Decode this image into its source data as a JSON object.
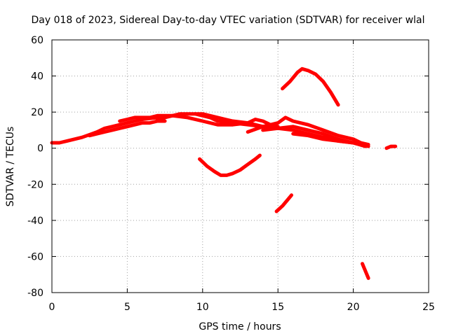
{
  "chart_data": {
    "type": "line",
    "title": "Day 018 of 2023, Sidereal Day-to-day VTEC variation (SDTVAR) for receiver wlal",
    "xlabel": "GPS time / hours",
    "ylabel": "SDTVAR / TECUs",
    "xlim": [
      0,
      25
    ],
    "ylim": [
      -80,
      60
    ],
    "xticks": [
      0,
      5,
      10,
      15,
      20,
      25
    ],
    "yticks": [
      -80,
      -60,
      -40,
      -20,
      0,
      20,
      40,
      60
    ],
    "grid": true,
    "color": "#ff0000",
    "series": [
      {
        "name": "arc-main-1",
        "x": [
          0,
          0.5,
          1,
          2,
          3,
          3.5,
          4,
          4.5,
          5,
          5.5,
          6,
          7,
          8,
          8.5,
          9,
          9.5,
          10,
          10.5,
          11,
          12,
          13,
          14,
          15,
          16,
          17,
          18,
          19,
          20,
          21
        ],
        "y": [
          3,
          3,
          4,
          6,
          9,
          11,
          12,
          13,
          14,
          15,
          16,
          17,
          18,
          19,
          19,
          19,
          18,
          17,
          15,
          14,
          13,
          12,
          11,
          10,
          8,
          6,
          4,
          3,
          1
        ]
      },
      {
        "name": "arc-main-2",
        "x": [
          2.5,
          3,
          3.5,
          4,
          4.5,
          5,
          5.5,
          6,
          6.5,
          7,
          7.5
        ],
        "y": [
          7,
          8,
          9,
          10,
          11,
          12,
          13,
          14,
          14,
          15,
          15
        ]
      },
      {
        "name": "arc-main-3",
        "x": [
          4.5,
          5,
          5.5,
          6,
          6.5,
          7,
          7.5,
          8
        ],
        "y": [
          15,
          16,
          17,
          17,
          17,
          18,
          18,
          18
        ]
      },
      {
        "name": "arc-main-4",
        "x": [
          7,
          8,
          9,
          10,
          11,
          12,
          13,
          13.5,
          14,
          14.5,
          15
        ],
        "y": [
          16,
          18,
          17,
          15,
          13,
          13,
          14,
          16,
          15,
          13,
          12
        ]
      },
      {
        "name": "arc-main-5",
        "x": [
          9.5,
          10,
          10.5,
          11,
          11.5,
          12,
          13,
          14
        ],
        "y": [
          19,
          19,
          18,
          17,
          16,
          15,
          14,
          12
        ]
      },
      {
        "name": "arc-main-6",
        "x": [
          13,
          14,
          15,
          15.5,
          16,
          17,
          18,
          19,
          20,
          20.5,
          21
        ],
        "y": [
          9,
          12,
          14,
          17,
          15,
          13,
          10,
          7,
          5,
          3,
          2
        ]
      },
      {
        "name": "arc-main-7",
        "x": [
          14,
          15,
          16,
          17,
          18,
          19,
          20,
          20.5
        ],
        "y": [
          10,
          11,
          12,
          10,
          8,
          5,
          3,
          2
        ]
      },
      {
        "name": "arc-main-8",
        "x": [
          16,
          17,
          18,
          19,
          20,
          20.8
        ],
        "y": [
          8,
          7,
          5,
          4,
          3,
          1
        ]
      },
      {
        "name": "arc-high",
        "x": [
          15.3,
          15.8,
          16.3,
          16.6,
          17,
          17.5,
          18,
          18.5,
          19
        ],
        "y": [
          33,
          37,
          42,
          44,
          43,
          41,
          37,
          31,
          24
        ]
      },
      {
        "name": "arc-low-u",
        "x": [
          9.8,
          10.3,
          10.8,
          11.2,
          11.6,
          12,
          12.5,
          13,
          13.5,
          13.8
        ],
        "y": [
          -6,
          -10,
          -13,
          -15,
          -15,
          -14,
          -12,
          -9,
          -6,
          -4
        ]
      },
      {
        "name": "arc-low-2",
        "x": [
          14.9,
          15.3,
          15.6,
          15.9
        ],
        "y": [
          -35,
          -32,
          -29,
          -26
        ]
      },
      {
        "name": "arc-low-3",
        "x": [
          20.6,
          20.8,
          21
        ],
        "y": [
          -64,
          -68,
          -72
        ]
      },
      {
        "name": "arc-small",
        "x": [
          22.2,
          22.5,
          22.8
        ],
        "y": [
          0,
          1,
          1
        ]
      }
    ]
  }
}
